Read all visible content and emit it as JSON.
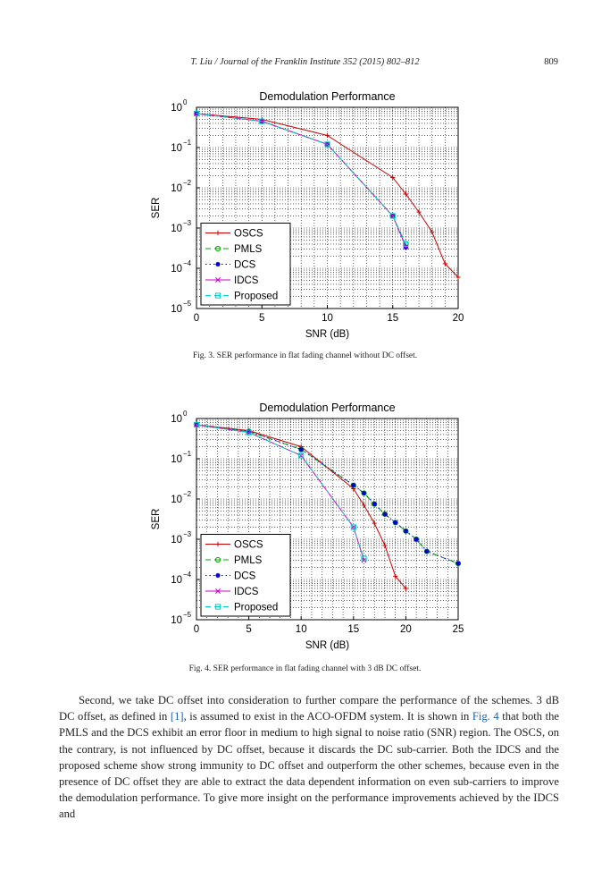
{
  "header": {
    "running_title": "T. Liu / Journal of the Franklin Institute 352 (2015) 802–812",
    "page_number": "809"
  },
  "figures": [
    {
      "caption": "Fig. 3.  SER performance in flat fading channel without DC offset.",
      "chart_data": {
        "type": "line",
        "title": "Demodulation Performance",
        "xlabel": "SNR (dB)",
        "ylabel": "SER",
        "xlim": [
          0,
          20
        ],
        "ylim": [
          1e-05,
          1
        ],
        "yscale": "log",
        "xticks": [
          0,
          5,
          10,
          15,
          20
        ],
        "yticks_exp": [
          0,
          -1,
          -2,
          -3,
          -4,
          -5
        ],
        "grid": true,
        "legend_placement": "bottom-left",
        "series": [
          {
            "name": "OSCS",
            "color": "#cc0000",
            "dash": "",
            "marker": "plus",
            "x": [
              0,
              5,
              10,
              15,
              16,
              17,
              18,
              19,
              20
            ],
            "y": [
              0.7,
              0.5,
              0.2,
              0.018,
              0.007,
              0.0025,
              0.0008,
              0.00013,
              6e-05
            ]
          },
          {
            "name": "PMLS",
            "color": "#00aa00",
            "dash": "6,4",
            "marker": "circle",
            "x": [
              0,
              5,
              10,
              15,
              16
            ],
            "y": [
              0.7,
              0.45,
              0.12,
              0.002,
              0.0004
            ]
          },
          {
            "name": "DCS",
            "color": "#0000cc",
            "dash": "1.5,3",
            "marker": "star",
            "x": [
              0,
              5,
              10,
              15,
              16
            ],
            "y": [
              0.7,
              0.45,
              0.12,
              0.002,
              0.00033
            ]
          },
          {
            "name": "IDCS",
            "color": "#cc00cc",
            "dash": "",
            "marker": "x",
            "x": [
              0,
              5,
              10,
              15,
              16
            ],
            "y": [
              0.7,
              0.45,
              0.12,
              0.002,
              0.00035
            ]
          },
          {
            "name": "Proposed",
            "color": "#00cccc",
            "dash": "6,4",
            "marker": "square",
            "x": [
              0,
              5,
              10,
              15,
              16
            ],
            "y": [
              0.7,
              0.45,
              0.12,
              0.002,
              0.0004
            ]
          }
        ]
      }
    },
    {
      "caption": "Fig. 4.  SER performance in flat fading channel with 3 dB DC offset.",
      "chart_data": {
        "type": "line",
        "title": "Demodulation Performance",
        "xlabel": "SNR (dB)",
        "ylabel": "SER",
        "xlim": [
          0,
          25
        ],
        "ylim": [
          1e-05,
          1
        ],
        "yscale": "log",
        "xticks": [
          0,
          5,
          10,
          15,
          20,
          25
        ],
        "yticks_exp": [
          0,
          -1,
          -2,
          -3,
          -4,
          -5
        ],
        "grid": true,
        "legend_placement": "bottom-left",
        "series": [
          {
            "name": "OSCS",
            "color": "#cc0000",
            "dash": "",
            "marker": "plus",
            "x": [
              0,
              5,
              10,
              15,
              16,
              17,
              18,
              19,
              20
            ],
            "y": [
              0.7,
              0.5,
              0.2,
              0.018,
              0.007,
              0.0025,
              0.0007,
              0.00012,
              6e-05
            ]
          },
          {
            "name": "PMLS",
            "color": "#00aa00",
            "dash": "6,4",
            "marker": "circle",
            "x": [
              0,
              5,
              10,
              15,
              16,
              17,
              18,
              19,
              20,
              21,
              22,
              25
            ],
            "y": [
              0.7,
              0.48,
              0.17,
              0.022,
              0.014,
              0.0075,
              0.0042,
              0.0026,
              0.0016,
              0.001,
              0.0005,
              0.00025
            ]
          },
          {
            "name": "DCS",
            "color": "#0000cc",
            "dash": "1.5,3",
            "marker": "star",
            "x": [
              0,
              5,
              10,
              15,
              16,
              17,
              18,
              19,
              20,
              21,
              22,
              25
            ],
            "y": [
              0.7,
              0.48,
              0.17,
              0.022,
              0.014,
              0.0075,
              0.0042,
              0.0026,
              0.0016,
              0.001,
              0.0005,
              0.00025
            ]
          },
          {
            "name": "IDCS",
            "color": "#cc00cc",
            "dash": "",
            "marker": "x",
            "x": [
              0,
              5,
              10,
              15,
              16
            ],
            "y": [
              0.7,
              0.45,
              0.12,
              0.002,
              0.0003
            ]
          },
          {
            "name": "Proposed",
            "color": "#00cccc",
            "dash": "6,4",
            "marker": "square",
            "x": [
              0,
              5,
              10,
              15,
              16
            ],
            "y": [
              0.7,
              0.45,
              0.12,
              0.002,
              0.00033
            ]
          }
        ]
      }
    }
  ],
  "body": {
    "p1_a": "Second, we take DC offset into consideration to further compare the performance of the schemes. 3 dB DC offset, as defined in ",
    "p1_ref": "[1]",
    "p1_b": ", is assumed to exist in the ACO-OFDM system. It is shown in ",
    "p1_fig": "Fig. 4",
    "p1_c": " that both the PMLS and the DCS exhibit an error floor in medium to high signal to noise ratio (SNR) region. The OSCS, on the contrary, is not influenced by DC offset, because it discards the DC sub-carrier. Both the IDCS and the proposed scheme show strong immunity to DC offset and outperform the other schemes, because even in the presence of DC offset they are able to extract the data dependent information on even sub-carriers to improve the demodulation performance. To give more insight on the performance improvements achieved by the IDCS and"
  }
}
